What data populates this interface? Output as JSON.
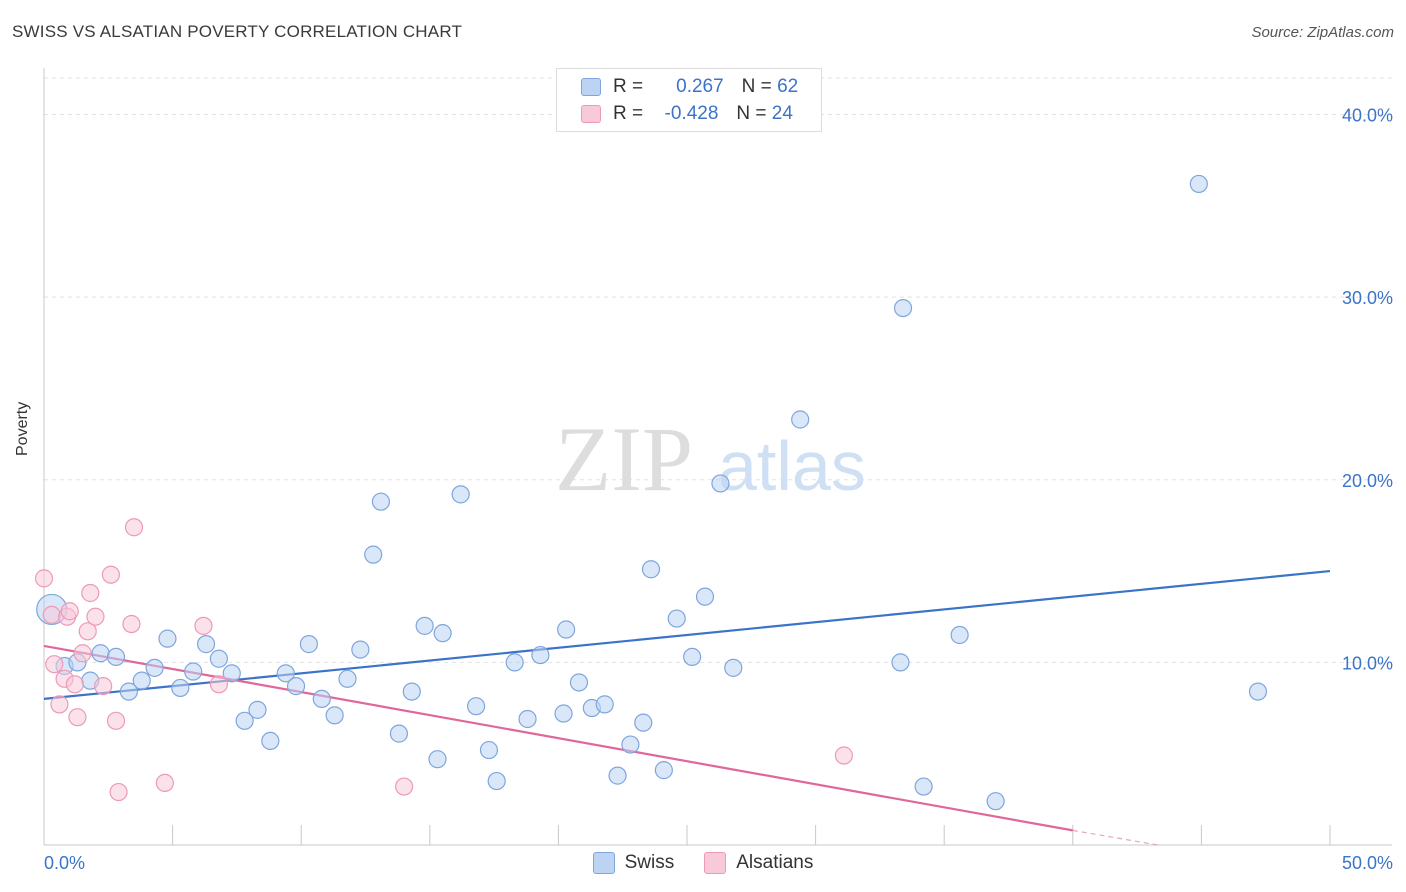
{
  "header": {
    "title": "SWISS VS ALSATIAN POVERTY CORRELATION CHART",
    "source": "Source: ZipAtlas.com"
  },
  "watermark": {
    "zip": "ZIP",
    "atlas": "atlas"
  },
  "colors": {
    "swiss": "#3b73c9",
    "swiss_fill": "#bcd3f3",
    "alsatian": "#e0679a",
    "alsatian_fill": "#f8c9d8",
    "tick_label": "#3b73c9",
    "grid": "#e2e2e2"
  },
  "legend": {
    "swiss": {
      "r_label": "R =",
      "r_value": "0.267",
      "n_label": "N =",
      "n_value": "62"
    },
    "alsatian": {
      "r_label": "R =",
      "r_value": "-0.428",
      "n_label": "N =",
      "n_value": "24"
    }
  },
  "bottom_legend": {
    "swiss": "Swiss",
    "alsatian": "Alsatians"
  },
  "chart_data": {
    "type": "scatter",
    "title": "SWISS VS ALSATIAN POVERTY CORRELATION CHART",
    "xlabel": "",
    "ylabel": "Poverty",
    "xlim": [
      0,
      50
    ],
    "ylim": [
      0,
      42
    ],
    "x_tick_labels": [
      {
        "value": 0,
        "label": "0.0%"
      },
      {
        "value": 50,
        "label": "50.0%"
      }
    ],
    "y_tick_labels": [
      {
        "value": 10,
        "label": "10.0%"
      },
      {
        "value": 20,
        "label": "20.0%"
      },
      {
        "value": 30,
        "label": "30.0%"
      },
      {
        "value": 40,
        "label": "40.0%"
      }
    ],
    "grid": "horizontal dashed",
    "legend_placement": "top-center",
    "series": [
      {
        "name": "Swiss",
        "points": [
          [
            0.3,
            12.9,
            1
          ],
          [
            0.8,
            9.8,
            0
          ],
          [
            1.3,
            10.0,
            0
          ],
          [
            1.8,
            9.0,
            0
          ],
          [
            2.2,
            10.5,
            0
          ],
          [
            2.8,
            10.3,
            0
          ],
          [
            3.3,
            8.4,
            0
          ],
          [
            3.8,
            9.0,
            0
          ],
          [
            4.3,
            9.7,
            0
          ],
          [
            4.8,
            11.3,
            0
          ],
          [
            5.3,
            8.6,
            0
          ],
          [
            5.8,
            9.5,
            0
          ],
          [
            6.3,
            11.0,
            0
          ],
          [
            6.8,
            10.2,
            0
          ],
          [
            7.3,
            9.4,
            0
          ],
          [
            7.8,
            6.8,
            0
          ],
          [
            8.3,
            7.4,
            0
          ],
          [
            8.8,
            5.7,
            0
          ],
          [
            9.4,
            9.4,
            0
          ],
          [
            9.8,
            8.7,
            0
          ],
          [
            10.3,
            11.0,
            0
          ],
          [
            10.8,
            8.0,
            0
          ],
          [
            11.3,
            7.1,
            0
          ],
          [
            11.8,
            9.1,
            0
          ],
          [
            12.3,
            10.7,
            0
          ],
          [
            12.8,
            15.9,
            0
          ],
          [
            13.1,
            18.8,
            0
          ],
          [
            13.8,
            6.1,
            0
          ],
          [
            14.3,
            8.4,
            0
          ],
          [
            14.8,
            12.0,
            0
          ],
          [
            15.3,
            4.7,
            0
          ],
          [
            15.5,
            11.6,
            0
          ],
          [
            16.2,
            19.2,
            0
          ],
          [
            16.8,
            7.6,
            0
          ],
          [
            17.3,
            5.2,
            0
          ],
          [
            17.6,
            3.5,
            0
          ],
          [
            18.3,
            10.0,
            0
          ],
          [
            18.8,
            6.9,
            0
          ],
          [
            19.3,
            10.4,
            0
          ],
          [
            20.2,
            7.2,
            0
          ],
          [
            20.3,
            11.8,
            0
          ],
          [
            20.8,
            8.9,
            0
          ],
          [
            21.3,
            7.5,
            0
          ],
          [
            21.8,
            7.7,
            0
          ],
          [
            22.3,
            3.8,
            0
          ],
          [
            22.8,
            5.5,
            0
          ],
          [
            23.3,
            6.7,
            0
          ],
          [
            23.6,
            15.1,
            0
          ],
          [
            24.1,
            4.1,
            0
          ],
          [
            24.6,
            12.4,
            0
          ],
          [
            25.2,
            10.3,
            0
          ],
          [
            25.7,
            13.6,
            0
          ],
          [
            26.3,
            19.8,
            0
          ],
          [
            26.8,
            9.7,
            0
          ],
          [
            29.4,
            23.3,
            0
          ],
          [
            33.3,
            10.0,
            0
          ],
          [
            33.4,
            29.4,
            0
          ],
          [
            34.2,
            3.2,
            0
          ],
          [
            35.6,
            11.5,
            0
          ],
          [
            37.0,
            2.4,
            0
          ],
          [
            44.9,
            36.2,
            0
          ],
          [
            47.2,
            8.4,
            0
          ]
        ]
      },
      {
        "name": "Alsatians",
        "points": [
          [
            0.0,
            14.6
          ],
          [
            0.3,
            12.6
          ],
          [
            0.4,
            9.9
          ],
          [
            0.6,
            7.7
          ],
          [
            0.8,
            9.1
          ],
          [
            0.9,
            12.5
          ],
          [
            1.0,
            12.8
          ],
          [
            1.2,
            8.8
          ],
          [
            1.3,
            7.0
          ],
          [
            1.5,
            10.5
          ],
          [
            1.7,
            11.7
          ],
          [
            1.8,
            13.8
          ],
          [
            2.0,
            12.5
          ],
          [
            2.3,
            8.7
          ],
          [
            2.6,
            14.8
          ],
          [
            2.8,
            6.8
          ],
          [
            2.9,
            2.9
          ],
          [
            3.4,
            12.1
          ],
          [
            3.5,
            17.4
          ],
          [
            4.7,
            3.4
          ],
          [
            6.2,
            12.0
          ],
          [
            6.8,
            8.8
          ],
          [
            14.0,
            3.2
          ],
          [
            31.1,
            4.9
          ]
        ]
      }
    ],
    "trend_lines": [
      {
        "series": "Swiss",
        "x": [
          0,
          50
        ],
        "y": [
          8.0,
          15.0
        ]
      },
      {
        "series": "Alsatians",
        "x": [
          0,
          40
        ],
        "y": [
          10.9,
          0.8
        ],
        "dashed_extension": {
          "x": [
            40,
            43.3
          ],
          "y": [
            0.8,
            0.0
          ]
        }
      }
    ]
  }
}
